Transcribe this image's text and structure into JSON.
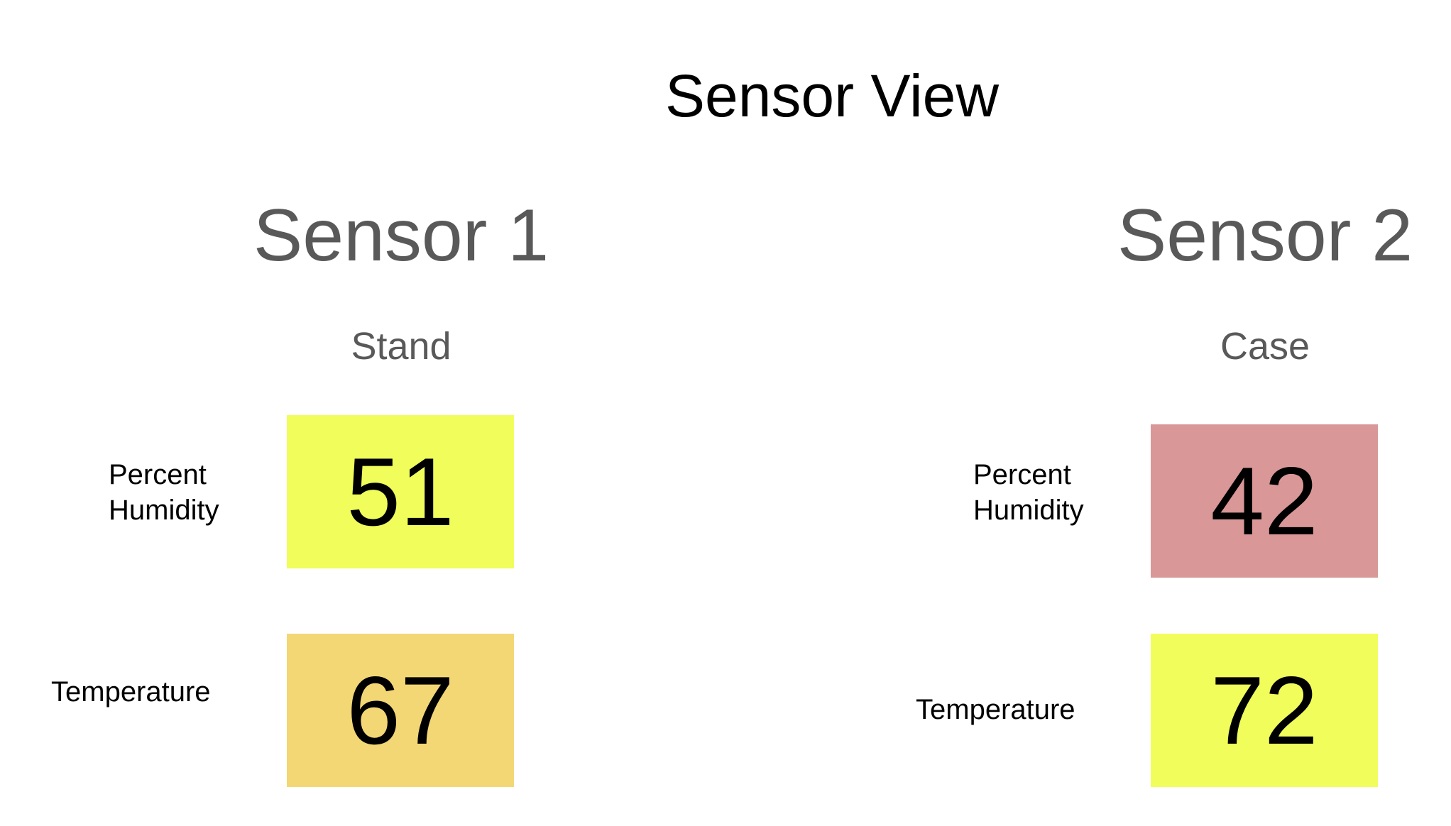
{
  "title": "Sensor View",
  "sensors": [
    {
      "name": "Sensor 1",
      "location": "Stand",
      "humidity": {
        "label_line1": "Percent",
        "label_line2": "Humidity",
        "value": "51",
        "color": "#f1fd5a"
      },
      "temperature": {
        "label": "Temperature",
        "value": "67",
        "color": "#f3d774"
      }
    },
    {
      "name": "Sensor 2",
      "location": "Case",
      "humidity": {
        "label_line1": "Percent",
        "label_line2": "Humidity",
        "value": "42",
        "color": "#d99797"
      },
      "temperature": {
        "label": "Temperature",
        "value": "72",
        "color": "#f1fd5a"
      }
    }
  ]
}
